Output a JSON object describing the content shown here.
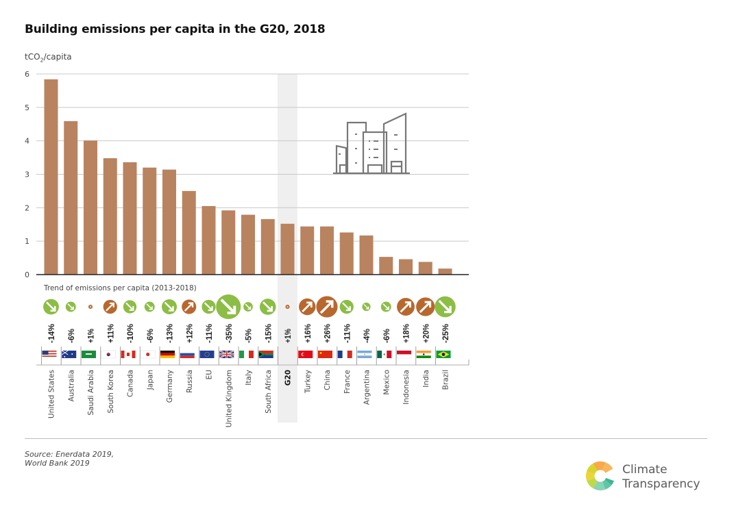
{
  "chart_data": {
    "type": "bar",
    "title": "Building emissions per capita in the G20, 2018",
    "ylabel": "tCO2/capita",
    "ylabel_main": "tCO",
    "ylabel_sub": "2",
    "ylabel_tail": "/capita",
    "xlabel": "",
    "ylim": [
      0,
      6
    ],
    "yticks": [
      0,
      1,
      2,
      3,
      4,
      5,
      6
    ],
    "grid": true,
    "highlight_category": "G20",
    "categories": [
      "United States",
      "Australia",
      "Saudi Arabia",
      "South Korea",
      "Canada",
      "Japan",
      "Germany",
      "Russia",
      "EU",
      "United Kingdom",
      "Italy",
      "South Africa",
      "G20",
      "Turkey",
      "China",
      "France",
      "Argentina",
      "Mexico",
      "Indonesia",
      "India",
      "Brazil"
    ],
    "values": [
      5.84,
      4.59,
      4.01,
      3.48,
      3.36,
      3.2,
      3.14,
      2.5,
      2.05,
      1.92,
      1.79,
      1.66,
      1.52,
      1.44,
      1.44,
      1.26,
      1.17,
      0.53,
      0.46,
      0.38,
      0.18
    ],
    "trend": {
      "title": "Trend of emissions per capita (2013-2018)",
      "values_pct": [
        -14,
        -6,
        1,
        11,
        -10,
        -6,
        -13,
        12,
        -11,
        -35,
        -5,
        -15,
        1,
        16,
        26,
        -11,
        -4,
        -6,
        18,
        20,
        -25
      ],
      "labels": [
        "-14%",
        "-6%",
        "+1%",
        "+11%",
        "-10%",
        "-6%",
        "-13%",
        "+12%",
        "-11%",
        "-35%",
        "-5%",
        "-15%",
        "+1%",
        "+16%",
        "+26%",
        "-11%",
        "-4%",
        "-6%",
        "+18%",
        "+20%",
        "-25%"
      ]
    },
    "flags": [
      "us-flag",
      "australia-flag",
      "saudi-arabia-flag",
      "south-korea-flag",
      "canada-flag",
      "japan-flag",
      "germany-flag",
      "russia-flag",
      "eu-flag",
      "uk-flag",
      "italy-flag",
      "south-africa-flag",
      "",
      "turkey-flag",
      "china-flag",
      "france-flag",
      "argentina-flag",
      "mexico-flag",
      "indonesia-flag",
      "india-flag",
      "brazil-flag"
    ]
  },
  "colors": {
    "bar": "#b98360",
    "decrease": "#8cbd45",
    "increase": "#b8682e",
    "highlight_band": "#efefef",
    "grid": "#c8c8c8",
    "axis": "#222222",
    "icon": "#777777"
  },
  "source": {
    "line1": "Source: Enerdata 2019,",
    "line2": "World Bank 2019"
  },
  "logo": {
    "line1": "Climate",
    "line2": "Transparency"
  }
}
